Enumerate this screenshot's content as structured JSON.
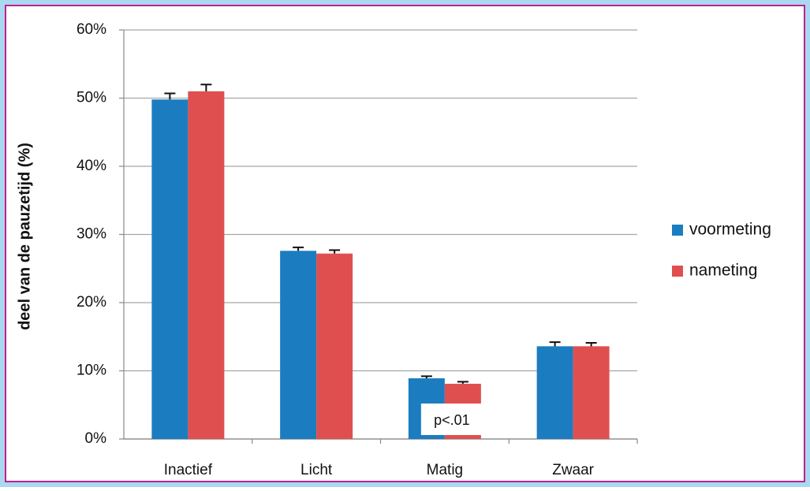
{
  "chart_data": {
    "type": "bar",
    "y_label": "deel van de pauzetijd (%)",
    "categories": [
      "Inactief",
      "Licht",
      "Matig",
      "Zwaar"
    ],
    "series": [
      {
        "name": "voormeting",
        "color": "#1b7dc0",
        "values": [
          49.8,
          27.6,
          8.9,
          13.6
        ],
        "errors": [
          0.9,
          0.5,
          0.3,
          0.6
        ]
      },
      {
        "name": "nameting",
        "color": "#e04f4f",
        "values": [
          51.0,
          27.2,
          8.1,
          13.6
        ],
        "errors": [
          1.0,
          0.5,
          0.3,
          0.5
        ]
      }
    ],
    "annotation": "p<.01",
    "ylim": [
      0,
      60
    ],
    "yticks": [
      {
        "value": 0,
        "label": "0%"
      },
      {
        "value": 10,
        "label": "10%"
      },
      {
        "value": 20,
        "label": "20%"
      },
      {
        "value": 30,
        "label": "30%"
      },
      {
        "value": 40,
        "label": "40%"
      },
      {
        "value": 50,
        "label": "50%"
      },
      {
        "value": 60,
        "label": "60%"
      }
    ],
    "grid": true,
    "legend": "right"
  }
}
